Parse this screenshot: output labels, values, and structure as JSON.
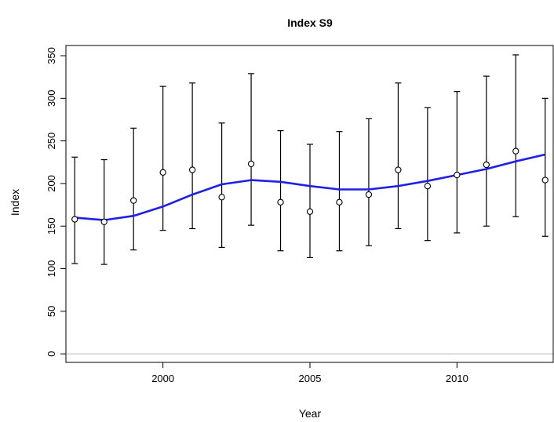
{
  "chart_data": {
    "type": "line",
    "title": "Index S9",
    "xlabel": "Year",
    "ylabel": "Index",
    "xlim": [
      1996.7,
      2013.3
    ],
    "ylim": [
      -10,
      362
    ],
    "x_ticks": [
      2000,
      2005,
      2010
    ],
    "y_ticks": [
      0,
      50,
      100,
      150,
      200,
      250,
      300,
      350
    ],
    "reference_line": 0,
    "grid": false,
    "legend": "none",
    "colors": {
      "trend": "#1f1fe6",
      "points": "#000000",
      "reference": "#bbbbbb"
    },
    "series": [
      {
        "kind": "points_with_error_bars",
        "x": [
          1997,
          1998,
          1999,
          2000,
          2001,
          2002,
          2003,
          2004,
          2005,
          2006,
          2007,
          2008,
          2009,
          2010,
          2011,
          2012,
          2013
        ],
        "values": [
          158,
          155,
          180,
          213,
          216,
          184,
          223,
          178,
          167,
          178,
          187,
          216,
          197,
          210,
          222,
          238,
          204
        ],
        "lower": [
          106,
          105,
          122,
          145,
          147,
          125,
          151,
          121,
          113,
          121,
          127,
          147,
          133,
          142,
          150,
          161,
          138
        ],
        "upper": [
          231,
          228,
          265,
          314,
          318,
          271,
          329,
          262,
          246,
          261,
          276,
          318,
          289,
          308,
          326,
          351,
          300
        ]
      },
      {
        "kind": "trend",
        "x": [
          1997,
          1998,
          1999,
          2000,
          2001,
          2002,
          2003,
          2004,
          2005,
          2006,
          2007,
          2008,
          2009,
          2010,
          2011,
          2012,
          2013
        ],
        "values": [
          160,
          157,
          162,
          173,
          187,
          199,
          204,
          202,
          197,
          193,
          193,
          197,
          203,
          210,
          217,
          226,
          234
        ]
      }
    ]
  }
}
